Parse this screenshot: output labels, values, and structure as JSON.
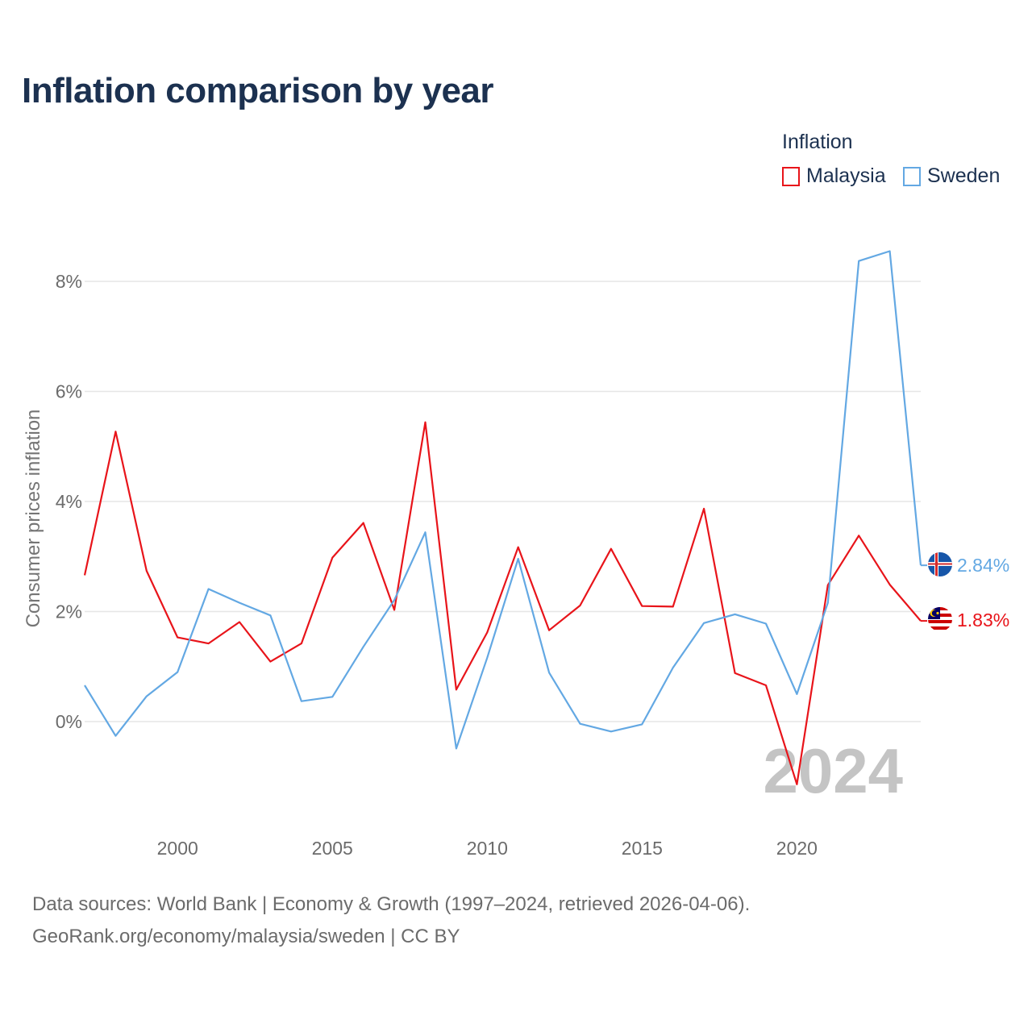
{
  "title": "Inflation comparison by year",
  "legend": {
    "title": "Inflation",
    "items": [
      {
        "label": "Malaysia",
        "color": "#e8141a"
      },
      {
        "label": "Sweden",
        "color": "#63a8e3"
      }
    ]
  },
  "year_watermark": "2024",
  "footer": {
    "line1": "Data sources: World Bank | Economy & Growth (1997–2024, retrieved 2026-04-06).",
    "line2": "GeoRank.org/economy/malaysia/sweden | CC BY"
  },
  "chart_data": {
    "type": "line",
    "title": "Inflation comparison by year",
    "xlabel": "",
    "ylabel": "Consumer prices inflation",
    "xlim": [
      1997,
      2024
    ],
    "ylim": [
      -1.8,
      8.9
    ],
    "grid": true,
    "legend_position": "top-right",
    "x": [
      1997,
      1998,
      1999,
      2000,
      2001,
      2002,
      2003,
      2004,
      2005,
      2006,
      2007,
      2008,
      2009,
      2010,
      2011,
      2012,
      2013,
      2014,
      2015,
      2016,
      2017,
      2018,
      2019,
      2020,
      2021,
      2022,
      2023,
      2024
    ],
    "x_ticks": [
      "2000",
      "2005",
      "2010",
      "2015",
      "2020"
    ],
    "x_tick_values": [
      2000,
      2005,
      2010,
      2015,
      2020
    ],
    "y_ticks": [
      "0%",
      "2%",
      "4%",
      "6%",
      "8%"
    ],
    "y_tick_values": [
      0,
      2,
      4,
      6,
      8
    ],
    "series": [
      {
        "name": "Malaysia",
        "color": "#e8141a",
        "values": [
          2.66,
          5.27,
          2.74,
          1.53,
          1.42,
          1.81,
          1.09,
          1.42,
          2.98,
          3.61,
          2.03,
          5.44,
          0.58,
          1.62,
          3.17,
          1.66,
          2.11,
          3.14,
          2.1,
          2.09,
          3.87,
          0.88,
          0.66,
          -1.14,
          2.48,
          3.38,
          2.49,
          1.83
        ],
        "end_label": "1.83%",
        "flag": "malaysia-flag"
      },
      {
        "name": "Sweden",
        "color": "#63a8e3",
        "values": [
          0.66,
          -0.26,
          0.46,
          0.9,
          2.41,
          2.16,
          1.93,
          0.37,
          0.45,
          1.36,
          2.21,
          3.44,
          -0.49,
          1.16,
          2.96,
          0.89,
          -0.04,
          -0.18,
          -0.05,
          0.98,
          1.79,
          1.95,
          1.78,
          0.5,
          2.16,
          8.37,
          8.55,
          2.84
        ],
        "end_label": "2.84%",
        "flag": "sweden-flag"
      }
    ]
  }
}
